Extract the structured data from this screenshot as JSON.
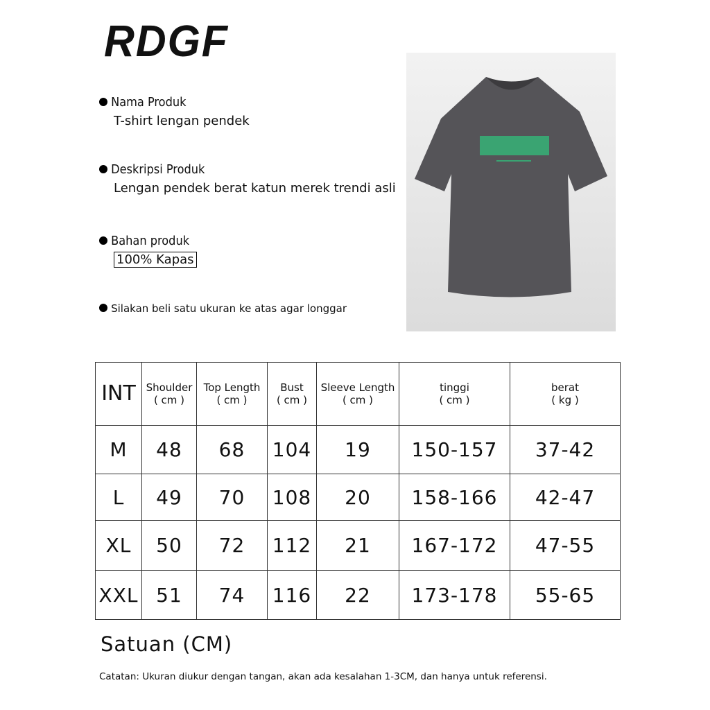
{
  "brand": "RDGF",
  "info": [
    {
      "label": "Nama Produk",
      "value": "T-shirt lengan pendek"
    },
    {
      "label": "Deskripsi Produk",
      "value": "Lengan pendek berat katun merek trendi asli"
    },
    {
      "label": "Bahan produk",
      "value": "100% Kapas"
    },
    {
      "label": "Silakan beli satu ukuran ke atas agar longgar"
    }
  ],
  "product_image": {
    "shirt_color": "#555458",
    "print_color": "#3aa472"
  },
  "table": {
    "headers": [
      {
        "name": "INT",
        "unit": ""
      },
      {
        "name": "Shoulder",
        "unit": "( cm )"
      },
      {
        "name": "Top Length",
        "unit": "( cm )"
      },
      {
        "name": "Bust",
        "unit": "( cm )"
      },
      {
        "name": "Sleeve Length",
        "unit": "( cm )"
      },
      {
        "name": "tinggi",
        "unit": "( cm )"
      },
      {
        "name": "berat",
        "unit": "( kg )"
      }
    ],
    "rows": [
      [
        "M",
        "48",
        "68",
        "104",
        "19",
        "150-157",
        "37-42"
      ],
      [
        "L",
        "49",
        "70",
        "108",
        "20",
        "158-166",
        "42-47"
      ],
      [
        "XL",
        "50",
        "72",
        "112",
        "21",
        "167-172",
        "47-55"
      ],
      [
        "XXL",
        "51",
        "74",
        "116",
        "22",
        "173-178",
        "55-65"
      ]
    ]
  },
  "unit_label": "Satuan (CM)",
  "note": "Catatan: Ukuran diukur dengan tangan, akan ada kesalahan 1-3CM, dan hanya untuk referensi."
}
